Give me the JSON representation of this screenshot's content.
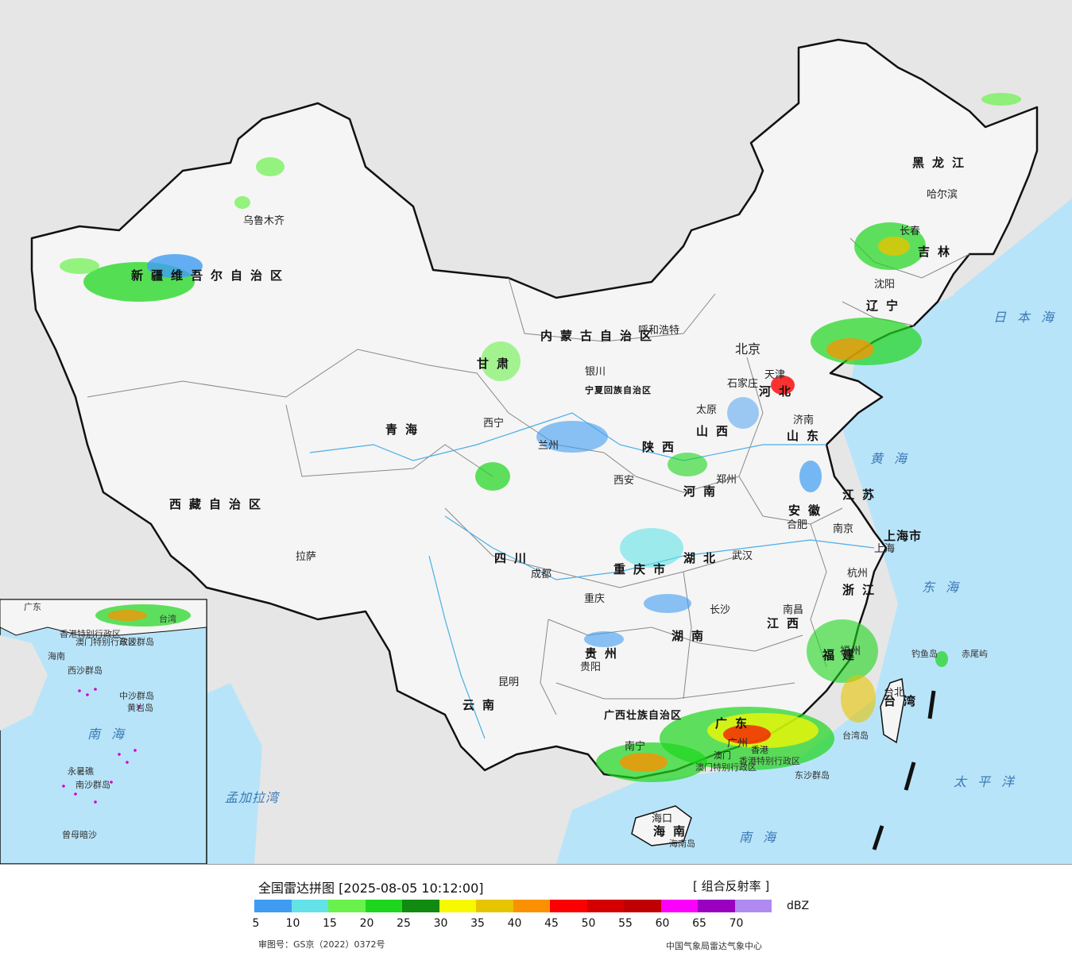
{
  "legend": {
    "title": "全国雷达拼图 [2025-08-05 10:12:00]",
    "product": "[ 组合反射率 ]",
    "unit": "dBZ",
    "ticks": [
      "5",
      "10",
      "15",
      "20",
      "25",
      "30",
      "35",
      "40",
      "45",
      "50",
      "55",
      "60",
      "65",
      "70"
    ],
    "colors": [
      "#3f9cf2",
      "#63e3e8",
      "#6af24c",
      "#1dd61d",
      "#118a11",
      "#f8f800",
      "#e6c400",
      "#fb9100",
      "#fb0000",
      "#d40000",
      "#c00000",
      "#fb00fb",
      "#9a00c0",
      "#b08af0"
    ],
    "review_no": "审图号：GS京（2022）0372号",
    "org": "中国气象局雷达气象中心"
  },
  "colors": {
    "sea": "#b8e4f9",
    "land_outside": "#e6e6e6",
    "china_land": "#f5f5f5",
    "border": "#111111"
  },
  "map_labels": {
    "cities": [
      "乌鲁木齐",
      "哈尔滨",
      "长春",
      "沈阳",
      "呼和浩特",
      "北京",
      "天津",
      "石家庄",
      "太原",
      "济南",
      "银川",
      "西宁",
      "兰州",
      "西安",
      "郑州",
      "合肥",
      "南京",
      "上海",
      "杭州",
      "武汉",
      "成都",
      "重庆",
      "长沙",
      "南昌",
      "福州",
      "台北",
      "贵阳",
      "昆明",
      "南宁",
      "广州",
      "海口",
      "拉萨",
      "香港",
      "澳门"
    ],
    "regions": [
      "新疆维吾尔自治区",
      "西藏自治区",
      "青海",
      "甘肃",
      "内蒙古自治区",
      "黑龙江",
      "吉林",
      "辽宁",
      "河北",
      "山西",
      "山东",
      "河南",
      "陕西",
      "宁夏回族自治区",
      "四川",
      "重庆市",
      "湖北",
      "湖南",
      "安徽",
      "江苏",
      "浙江",
      "江西",
      "福建",
      "台湾",
      "贵州",
      "云南",
      "广西壮族自治区",
      "广东",
      "海南",
      "上海市"
    ],
    "seas": [
      "日本海",
      "黄海",
      "东海",
      "南海",
      "太平洋",
      "孟加拉湾"
    ],
    "islands": [
      "钓鱼岛",
      "赤尾屿",
      "台湾岛",
      "东沙群岛",
      "海南岛"
    ],
    "special": [
      "香港特别行政区",
      "澳门特别行政区"
    ],
    "inset": [
      "广东",
      "台湾",
      "香港特别行政区",
      "澳门特别行政区",
      "东沙群岛",
      "海南",
      "西沙群岛",
      "中沙群岛",
      "黄岩岛",
      "南海",
      "永暑礁",
      "南沙群岛",
      "曾母暗沙"
    ]
  }
}
